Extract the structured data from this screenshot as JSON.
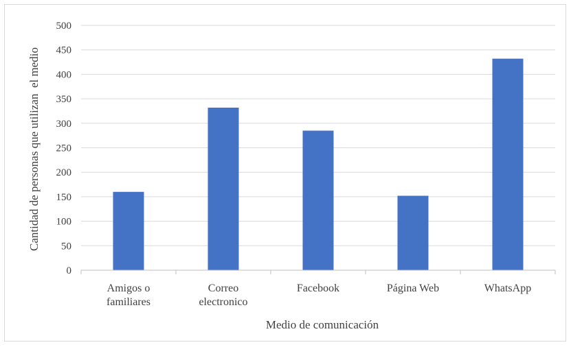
{
  "chart_data": {
    "type": "bar",
    "categories": [
      [
        "Amigos o",
        "familiares"
      ],
      [
        "Correo",
        "electronico"
      ],
      [
        "Facebook"
      ],
      [
        "Página Web"
      ],
      [
        "WhatsApp"
      ]
    ],
    "values": [
      160,
      332,
      285,
      152,
      432
    ],
    "xlabel": "Medio de comunicación",
    "ylabel": "Cantidad de personas que utilizan  el medio",
    "ylim": [
      0,
      500
    ],
    "yticks": [
      0,
      50,
      100,
      150,
      200,
      250,
      300,
      350,
      400,
      450,
      500
    ],
    "grid": true,
    "legend": "none",
    "colors": {
      "bar": "#4472C4",
      "grid": "#d9d9d9",
      "axis": "#bfbfbf"
    }
  }
}
